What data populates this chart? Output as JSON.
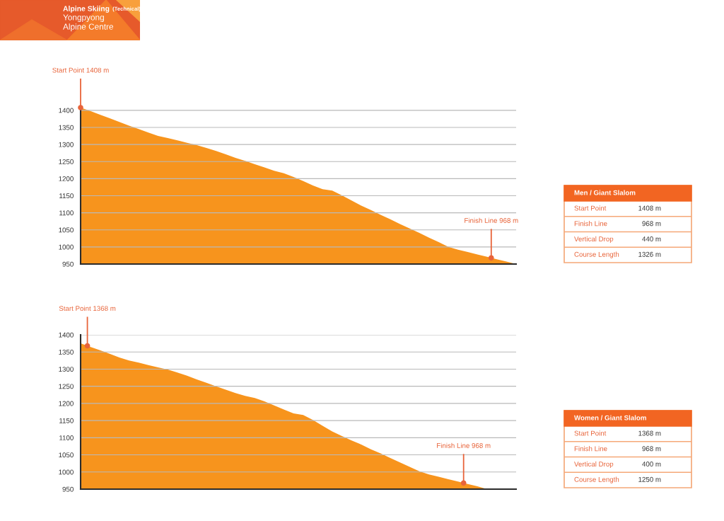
{
  "chart_data": [
    {
      "type": "other",
      "title": "Alpine Skiing",
      "subtitle": "(Technical)",
      "annotations": [
        "Yongpyong\nAlpine Centre"
      ]
    },
    {
      "type": "area",
      "categories": [
        null,
        null,
        null,
        null,
        null,
        null,
        null,
        null,
        null,
        null,
        null,
        null,
        null,
        null,
        null,
        null,
        null,
        null,
        null,
        null,
        null,
        null,
        null,
        null,
        null,
        null,
        null,
        null,
        null,
        null,
        null,
        null,
        null,
        null,
        null,
        null,
        null,
        null,
        null,
        null,
        null,
        null,
        null,
        null,
        null,
        null
      ],
      "values": [
        1408,
        1398,
        1387,
        1377,
        1366,
        1355,
        1345,
        1335,
        1325,
        1319,
        1312,
        1305,
        1298,
        1290,
        1281,
        1271,
        1261,
        1252,
        1242,
        1233,
        1223,
        1216,
        1205,
        1193,
        1180,
        1169,
        1165,
        1151,
        1136,
        1121,
        1108,
        1094,
        1081,
        1067,
        1054,
        1041,
        1027,
        1014,
        1000,
        992,
        985,
        978,
        971,
        964,
        957,
        950
      ],
      "color": "#f7941d",
      "ylim": [
        950,
        1410
      ],
      "yticks": [
        950,
        1000,
        1050,
        1100,
        1150,
        1200,
        1250,
        1300,
        1350,
        1400
      ],
      "grid": "y",
      "tick_labels": "y",
      "annotations": [
        {
          "text": "Start Point 1408 m",
          "y": 1408
        },
        {
          "text": "Finish Line 968 m",
          "y": 968
        }
      ]
    },
    {
      "type": "other",
      "title": "Men / Giant Slalom",
      "annotations": [
        "Start Point",
        "1408 m",
        "Finish Line",
        "968 m",
        "Vertical Drop",
        "440 m",
        "Course Length",
        "1326 m"
      ]
    },
    {
      "type": "area",
      "categories": [
        null,
        null,
        null,
        null,
        null,
        null,
        null,
        null,
        null,
        null,
        null,
        null,
        null,
        null,
        null,
        null,
        null,
        null,
        null,
        null,
        null,
        null,
        null,
        null,
        null,
        null,
        null,
        null,
        null,
        null,
        null,
        null,
        null,
        null,
        null,
        null,
        null,
        null,
        null,
        null,
        null,
        null,
        null,
        null,
        null,
        null
      ],
      "values": [
        1375,
        1365,
        1355,
        1345,
        1334,
        1325,
        1319,
        1312,
        1305,
        1299,
        1290,
        1281,
        1270,
        1260,
        1250,
        1240,
        1230,
        1222,
        1216,
        1206,
        1194,
        1182,
        1171,
        1166,
        1152,
        1135,
        1118,
        1105,
        1092,
        1080,
        1066,
        1054,
        1041,
        1028,
        1015,
        1002,
        993,
        986,
        979,
        972,
        965,
        958,
        950,
        null,
        null,
        null
      ],
      "color": "#f7941d",
      "ylim": [
        950,
        1400
      ],
      "yticks": [
        950,
        1000,
        1050,
        1100,
        1150,
        1200,
        1250,
        1300,
        1350,
        1400
      ],
      "grid": "y",
      "tick_labels": "y",
      "annotations": [
        {
          "text": "Start Point 1368 m",
          "y": 1368
        },
        {
          "text": "Finish Line 968 m",
          "y": 968
        }
      ]
    },
    {
      "type": "other",
      "title": "Women / Giant Slalom",
      "annotations": [
        "Start Point",
        "1368 m",
        "Finish Line",
        "968 m",
        "Vertical Drop",
        "400 m",
        "Course Length",
        "1250 m"
      ]
    }
  ]
}
